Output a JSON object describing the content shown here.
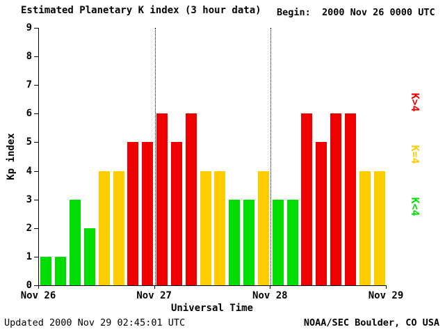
{
  "header": {
    "title": "Estimated Planetary K index (3 hour data)",
    "begin_label": "Begin:  2000 Nov 26 0000 UTC"
  },
  "footer": {
    "updated": "Updated 2000 Nov 29 02:45:01 UTC",
    "source": "NOAA/SEC Boulder, CO USA"
  },
  "legend": {
    "position": "right",
    "items": [
      {
        "label": "K>4",
        "color": "#ee0000"
      },
      {
        "label": "K=4",
        "color": "#ffcc00"
      },
      {
        "label": "K<4",
        "color": "#00dd00"
      }
    ]
  },
  "chart_data": {
    "type": "bar",
    "title": "Estimated Planetary K index (3 hour data)",
    "xlabel": "Universal Time",
    "ylabel": "Kp index",
    "ylim": [
      0,
      9
    ],
    "yticks": [
      0,
      1,
      2,
      3,
      4,
      5,
      6,
      7,
      8,
      9
    ],
    "x_tick_labels": [
      "Nov 26",
      "Nov 27",
      "Nov 28",
      "Nov 29"
    ],
    "hours_per_bar": 3,
    "bars_per_day": 8,
    "values": [
      1,
      1,
      3,
      2,
      4,
      4,
      5,
      5,
      6,
      5,
      6,
      4,
      4,
      3,
      3,
      4,
      3,
      3,
      6,
      5,
      6,
      6,
      4,
      4
    ],
    "colors": {
      "k_lt4": "#00dd00",
      "k_eq4": "#ffcc00",
      "k_gt4": "#ee0000"
    },
    "grid": "dotted-vertical-day-lines",
    "legend_position": "right"
  }
}
